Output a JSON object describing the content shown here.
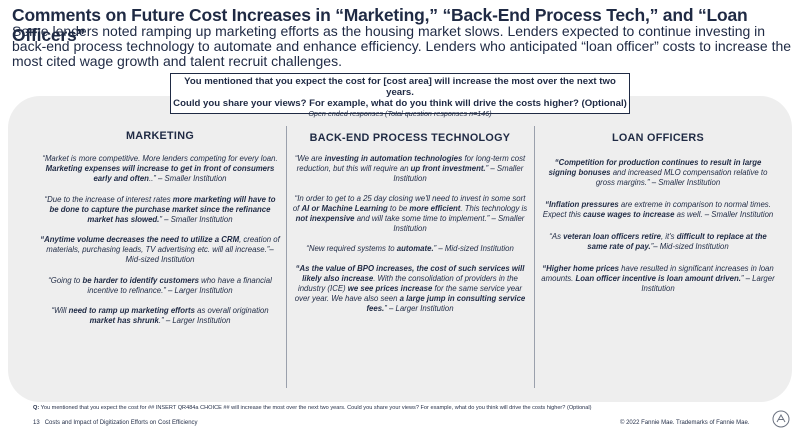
{
  "header": {
    "title": "Comments on Future Cost Increases in “Marketing,” “Back-End Process Tech,” and “Loan Officers”",
    "subtitle": "Some lenders noted ramping up marketing efforts as the housing market slows. Lenders expected to continue investing in back-end process technology to automate and enhance efficiency. Lenders who anticipated “loan officer” costs to increase the most cited wage growth and talent recruit challenges."
  },
  "question": {
    "line1": "You mentioned that you expect the cost for [cost area] will increase the most over the next two years.",
    "line2": "Could you share your views? For example, what do you think will drive the costs higher? (Optional)",
    "note": "Open ended responses (Total question responses n=146)"
  },
  "columns": [
    {
      "heading": "MARKETING",
      "quotes": [
        [
          {
            "t": "“Market is more competitive. More lenders competing for every loan. ",
            "b": false
          },
          {
            "t": "Marketing expenses will increase to get in front of consumers early and often",
            "b": true
          },
          {
            "t": "..” – Smaller Institution",
            "b": false
          }
        ],
        [
          {
            "t": "“Due to the increase of interest rates ",
            "b": false
          },
          {
            "t": "more marketing will have to be done to capture the purchase market since the refinance market has slowed.",
            "b": true
          },
          {
            "t": "” – Smaller Institution",
            "b": false
          }
        ],
        [
          {
            "t": "“Anytime volume decreases the need to utilize a CRM",
            "b": true
          },
          {
            "t": ", creation of materials, purchasing leads, TV advertising etc. will all increase.”– Mid-sized Institution",
            "b": false
          }
        ],
        [
          {
            "t": "“Going to ",
            "b": false
          },
          {
            "t": "be harder to identify customers",
            "b": true
          },
          {
            "t": " who have a financial incentive to refinance.” – Larger Institution",
            "b": false
          }
        ],
        [
          {
            "t": "“Will ",
            "b": false
          },
          {
            "t": "need to ramp up marketing efforts",
            "b": true
          },
          {
            "t": " as overall origination ",
            "b": false
          },
          {
            "t": "market has shrunk",
            "b": true
          },
          {
            "t": ".” – Larger Institution",
            "b": false
          }
        ]
      ]
    },
    {
      "heading": "BACK-END PROCESS TECHNOLOGY",
      "quotes": [
        [
          {
            "t": "“We are ",
            "b": false
          },
          {
            "t": "investing in automation technologies",
            "b": true
          },
          {
            "t": " for long-term cost reduction, but this will require an ",
            "b": false
          },
          {
            "t": "up front investment.",
            "b": true
          },
          {
            "t": "” – Smaller Institution",
            "b": false
          }
        ],
        [
          {
            "t": "“In order to get to a 25 day closing we'll need to invest in some sort of ",
            "b": false
          },
          {
            "t": "AI or Machine Learning",
            "b": true
          },
          {
            "t": " to be ",
            "b": false
          },
          {
            "t": "more efficient",
            "b": true
          },
          {
            "t": ".  This technology is ",
            "b": false
          },
          {
            "t": "not inexpensive",
            "b": true
          },
          {
            "t": " and will take some time to implement.” – Smaller Institution",
            "b": false
          }
        ],
        [
          {
            "t": "“New required systems to ",
            "b": false
          },
          {
            "t": "automate.",
            "b": true
          },
          {
            "t": "” – Mid-sized Institution",
            "b": false
          }
        ],
        [
          {
            "t": "“As the value of BPO increases, the cost of such services will likely also increase",
            "b": true
          },
          {
            "t": ". With the consolidation of providers in the industry (ICE) ",
            "b": false
          },
          {
            "t": "we see prices increase",
            "b": true
          },
          {
            "t": " for the same service year over year. We have also seen ",
            "b": false
          },
          {
            "t": "a large jump in consulting service fees.",
            "b": true
          },
          {
            "t": "” – Larger Institution",
            "b": false
          }
        ]
      ]
    },
    {
      "heading": "LOAN OFFICERS",
      "quotes": [
        [
          {
            "t": "“Competition for production continues to result in large signing bonuses",
            "b": true
          },
          {
            "t": " and increased MLO compensation relative to gross margins.” – Smaller Institution",
            "b": false
          }
        ],
        [
          {
            "t": "“Inflation pressures",
            "b": true
          },
          {
            "t": " are extreme in comparison to normal times.  Expect this ",
            "b": false
          },
          {
            "t": "cause wages to increase",
            "b": true
          },
          {
            "t": " as well. – Smaller Institution",
            "b": false
          }
        ],
        [
          {
            "t": "“As ",
            "b": false
          },
          {
            "t": "veteran loan officers retire",
            "b": true
          },
          {
            "t": ", it's ",
            "b": false
          },
          {
            "t": "difficult to replace at the same rate of pay.",
            "b": true
          },
          {
            "t": "”– Mid-sized Institution",
            "b": false
          }
        ],
        [
          {
            "t": "“Higher home prices",
            "b": true
          },
          {
            "t": " have resulted in significant increases in loan amounts. ",
            "b": false
          },
          {
            "t": "Loan officer incentive is loan amount driven.",
            "b": true
          },
          {
            "t": "” – Larger Institution",
            "b": false
          }
        ]
      ]
    }
  ],
  "footnote": {
    "label": "Q:",
    "text": " You mentioned that you expect the cost for ## INSERT QR484a CHOICE ## will increase the most over the next two years. Could you share your views? For example, what do you think will drive the costs higher? (Optional)"
  },
  "footer": {
    "page_number": "13",
    "doc_title": "Costs and Impact of Digitization Efforts on Cost Efficiency",
    "copyright": "© 2022 Fannie Mae.  Trademarks of Fannie Mae."
  },
  "colors": {
    "text": "#1f2a44",
    "panel": "#eeeeee",
    "divider": "#9aa0ac"
  },
  "icons": {
    "logo": "fannie-mae-logo-icon"
  }
}
